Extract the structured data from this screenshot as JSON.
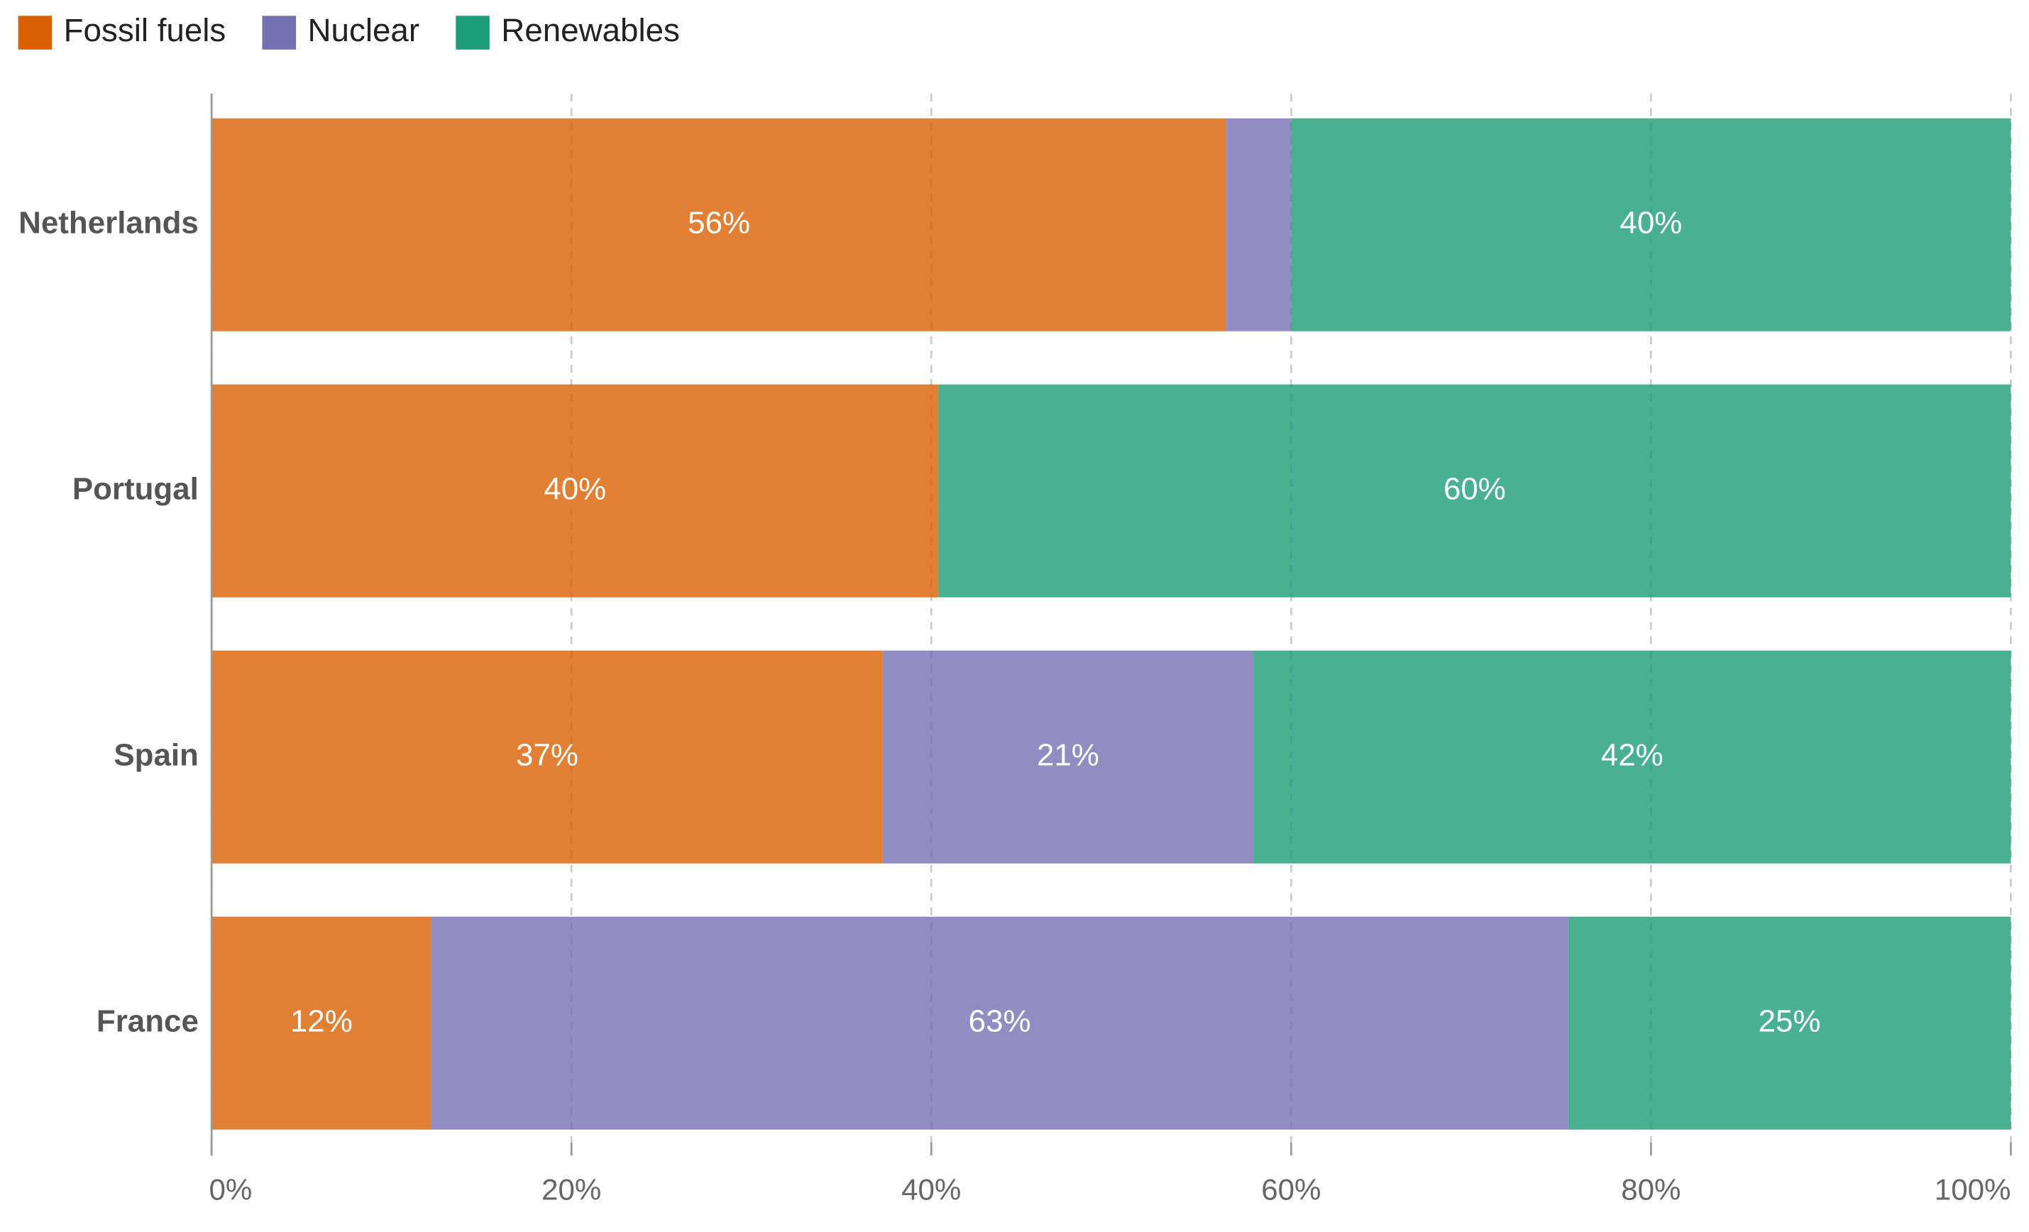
{
  "chart_data": {
    "type": "stacked-bar-horizontal",
    "categories": [
      "Netherlands",
      "Portugal",
      "Spain",
      "France"
    ],
    "series": [
      {
        "name": "Fossil fuels",
        "color": "#d95f02",
        "values": [
          56.4,
          40.4,
          37.3,
          12.2
        ],
        "value_labels": [
          "56%",
          "40%",
          "37%",
          "12%"
        ]
      },
      {
        "name": "Nuclear",
        "color": "#7570b3",
        "values": [
          3.6,
          0,
          20.6,
          63.2
        ],
        "value_labels": [
          null,
          null,
          "21%",
          "63%"
        ]
      },
      {
        "name": "Renewables",
        "color": "#1b9e77",
        "values": [
          40.0,
          59.6,
          42.1,
          24.6
        ],
        "value_labels": [
          "40%",
          "60%",
          "42%",
          "25%"
        ]
      }
    ],
    "xlim": [
      0,
      100
    ],
    "xticks": [
      {
        "value": 0,
        "label": "0%"
      },
      {
        "value": 20,
        "label": "20%"
      },
      {
        "value": 40,
        "label": "40%"
      },
      {
        "value": 60,
        "label": "60%"
      },
      {
        "value": 80,
        "label": "80%"
      },
      {
        "value": 100,
        "label": "100%"
      }
    ],
    "grid": true
  }
}
